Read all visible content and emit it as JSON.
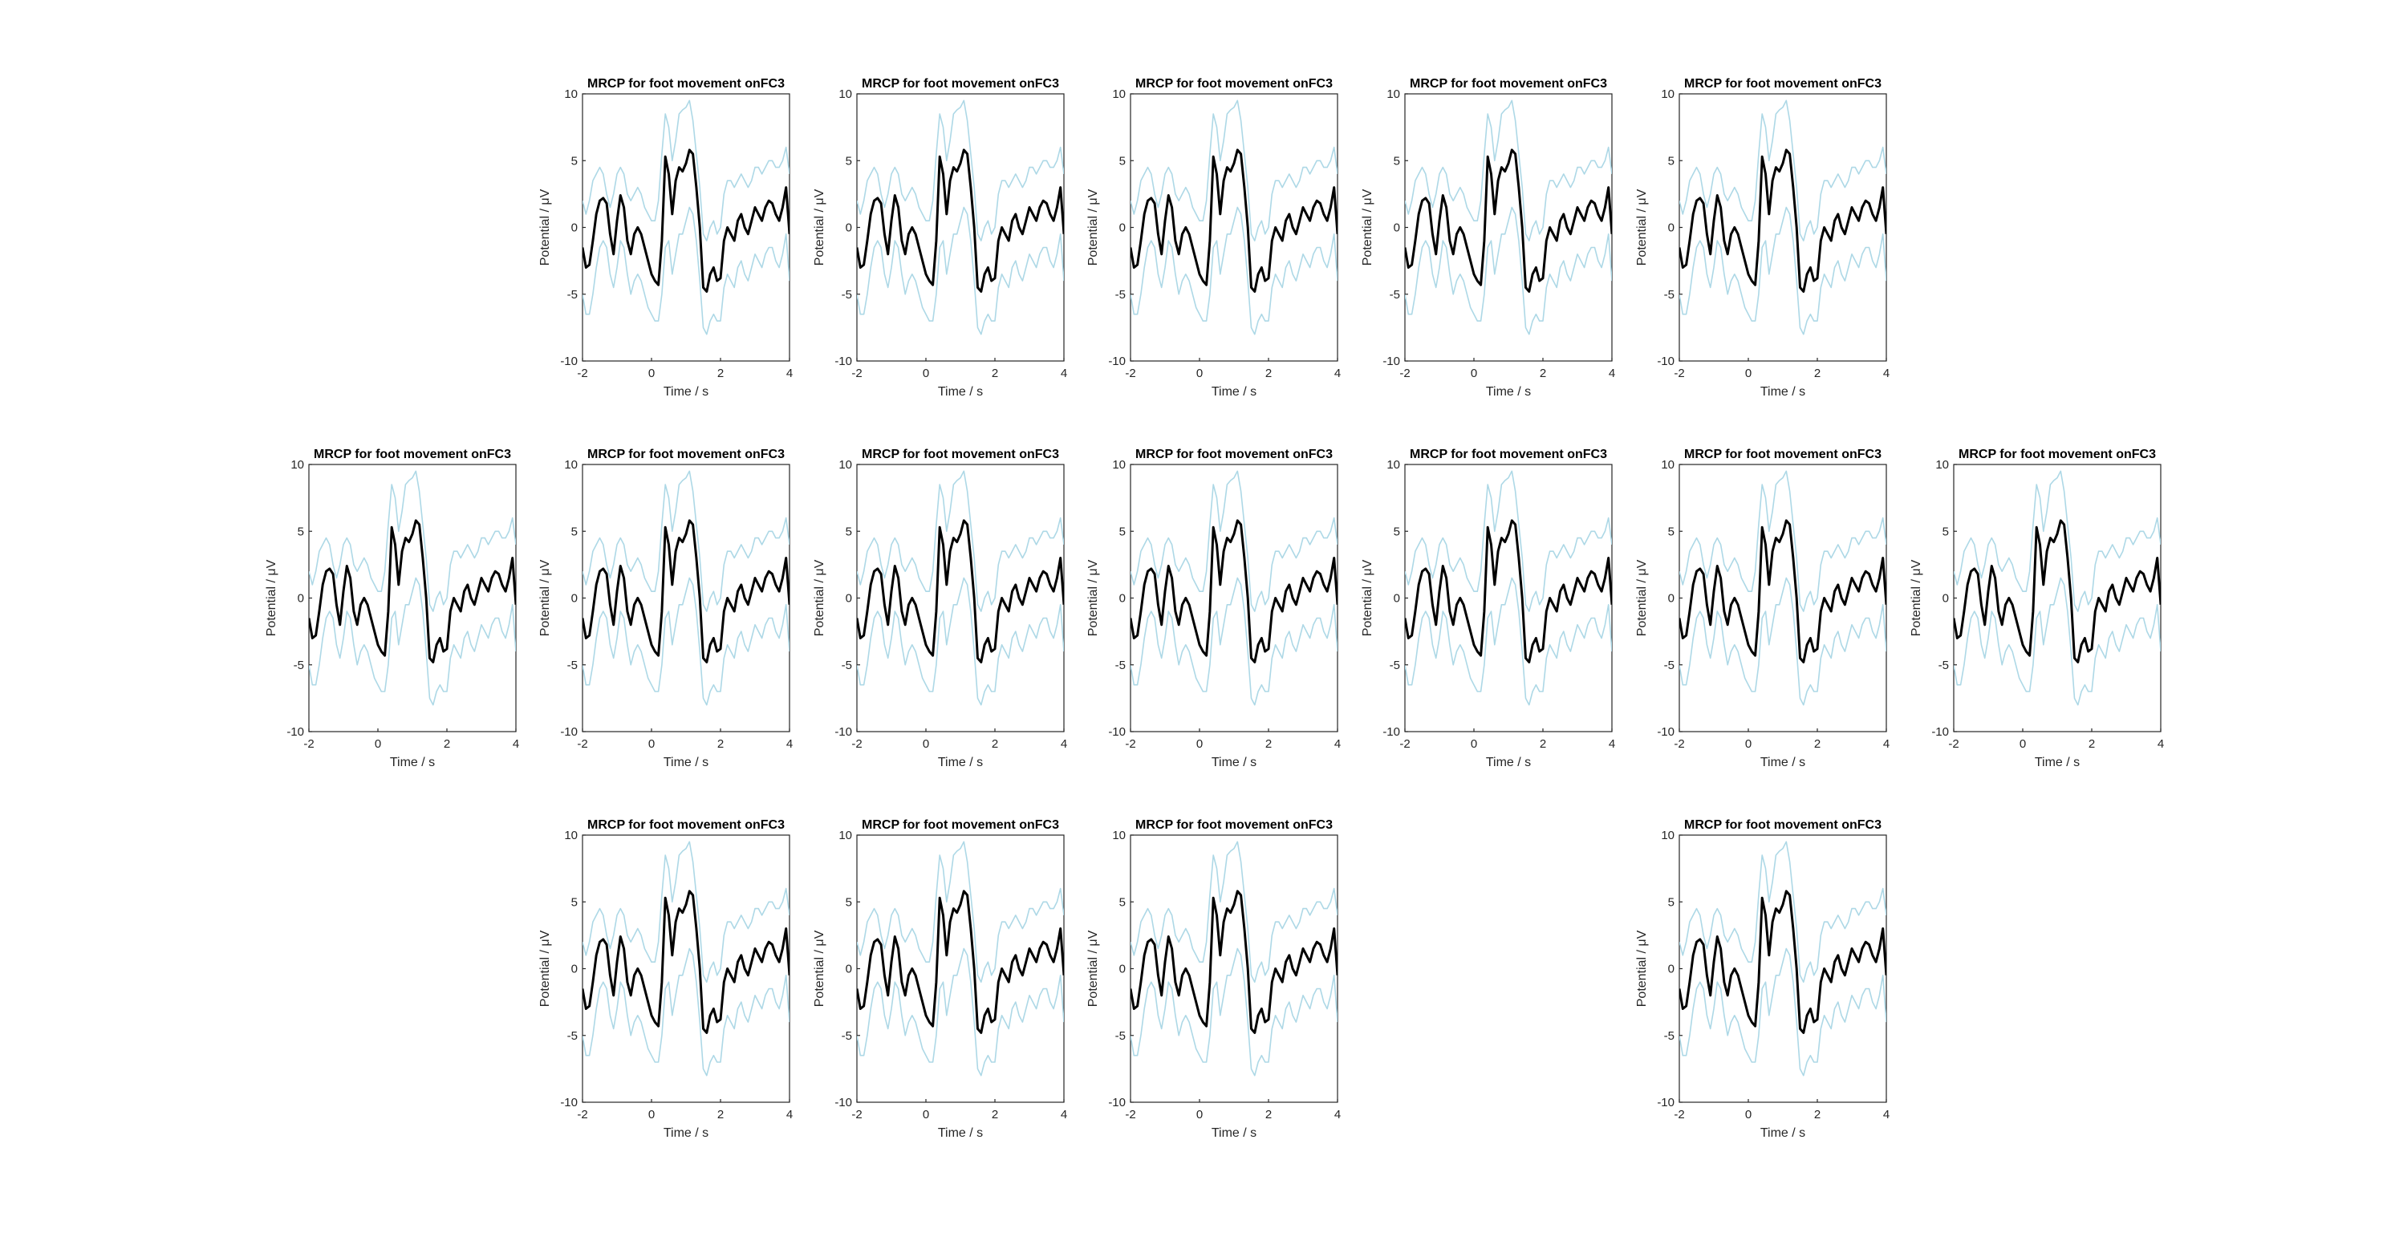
{
  "figure": {
    "background": "#ffffff",
    "axes_color": "#262626",
    "mean_color": "#000000",
    "band_color": "#add8e6"
  },
  "chart_data": {
    "type": "line",
    "title": "MRCP for foot movement onFC3",
    "xlabel": "Time / s",
    "ylabel": "Potential / μV",
    "xlim": [
      -2,
      4
    ],
    "ylim": [
      -10,
      10
    ],
    "xticks": [
      -2,
      0,
      2,
      4
    ],
    "yticks": [
      -10,
      -5,
      0,
      5,
      10
    ],
    "grid": false,
    "legend": "none",
    "x": [
      -2.0,
      -1.9,
      -1.8,
      -1.7,
      -1.6,
      -1.5,
      -1.4,
      -1.3,
      -1.2,
      -1.1,
      -1.0,
      -0.9,
      -0.8,
      -0.7,
      -0.6,
      -0.5,
      -0.4,
      -0.3,
      -0.2,
      -0.1,
      0.0,
      0.1,
      0.2,
      0.3,
      0.4,
      0.5,
      0.6,
      0.7,
      0.8,
      0.9,
      1.0,
      1.1,
      1.2,
      1.3,
      1.4,
      1.5,
      1.6,
      1.7,
      1.8,
      1.9,
      2.0,
      2.1,
      2.2,
      2.3,
      2.4,
      2.5,
      2.6,
      2.7,
      2.8,
      2.9,
      3.0,
      3.1,
      3.2,
      3.3,
      3.4,
      3.5,
      3.6,
      3.7,
      3.8,
      3.9,
      4.0
    ],
    "series": [
      {
        "values": [
          -1.5,
          -3.0,
          -2.8,
          -1.0,
          1.0,
          2.0,
          2.2,
          1.8,
          -0.5,
          -2.0,
          0.5,
          2.4,
          1.5,
          -1.0,
          -2.0,
          -0.5,
          0.0,
          -0.5,
          -1.5,
          -2.5,
          -3.5,
          -4.0,
          -4.3,
          -1.0,
          5.3,
          4.0,
          1.0,
          3.5,
          4.5,
          4.2,
          4.8,
          5.8,
          5.5,
          3.0,
          0.0,
          -4.5,
          -4.8,
          -3.5,
          -3.0,
          -4.0,
          -3.8,
          -1.0,
          0.0,
          -0.5,
          -1.0,
          0.5,
          1.0,
          0.0,
          -0.5,
          0.5,
          1.5,
          1.0,
          0.5,
          1.5,
          2.0,
          1.8,
          1.0,
          0.5,
          1.5,
          3.0,
          -0.5
        ]
      }
    ],
    "band_upper": [
      2.0,
      1.0,
      2.0,
      3.5,
      4.0,
      4.5,
      4.0,
      2.5,
      1.5,
      2.5,
      4.0,
      4.5,
      4.0,
      2.5,
      2.0,
      2.5,
      3.0,
      2.5,
      1.5,
      1.0,
      0.5,
      0.5,
      2.0,
      5.5,
      8.5,
      7.5,
      5.0,
      6.5,
      8.5,
      8.8,
      9.0,
      9.5,
      8.0,
      5.5,
      3.0,
      -0.5,
      -1.0,
      0.0,
      0.5,
      -0.5,
      0.0,
      2.5,
      3.5,
      3.5,
      3.0,
      3.5,
      4.0,
      3.5,
      3.0,
      3.5,
      4.5,
      4.5,
      4.0,
      4.5,
      5.0,
      5.0,
      4.5,
      4.5,
      5.0,
      6.0,
      4.0
    ],
    "band_lower": [
      -5.0,
      -6.5,
      -6.5,
      -5.0,
      -3.0,
      -1.5,
      -1.0,
      -1.5,
      -3.5,
      -4.5,
      -3.0,
      -1.0,
      -1.5,
      -3.5,
      -5.0,
      -4.0,
      -3.5,
      -4.0,
      -5.0,
      -6.0,
      -6.5,
      -7.0,
      -7.0,
      -5.0,
      -1.5,
      -1.0,
      -3.5,
      -2.0,
      -0.5,
      -0.5,
      0.5,
      1.5,
      1.0,
      -1.0,
      -4.0,
      -7.5,
      -8.0,
      -7.0,
      -6.5,
      -7.0,
      -7.0,
      -4.5,
      -3.5,
      -4.0,
      -4.5,
      -3.0,
      -2.5,
      -3.5,
      -4.0,
      -3.0,
      -2.0,
      -2.5,
      -3.0,
      -2.0,
      -1.5,
      -1.5,
      -2.5,
      -3.0,
      -2.0,
      -0.5,
      -4.0
    ]
  }
}
